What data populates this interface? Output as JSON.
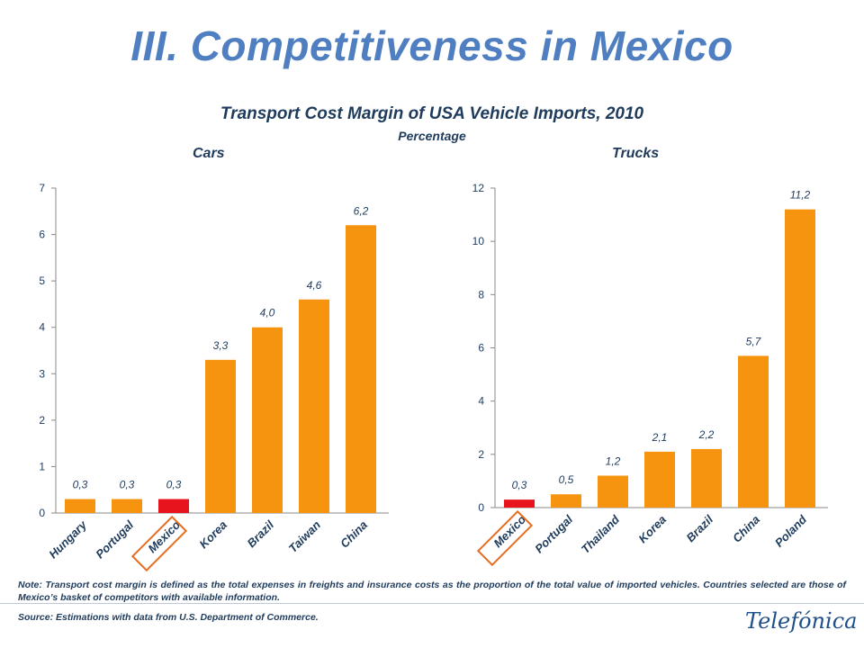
{
  "page": {
    "title": "III. Competitiveness in Mexico",
    "subtitle": "Transport Cost Margin of USA Vehicle Imports, 2010",
    "unit": "Percentage",
    "note": "Note: Transport cost margin is defined as the total expenses in freights and insurance costs as the proportion of the total value of imported vehicles. Countries selected are those of Mexico’s basket of competitors with available information.",
    "source": "Source: Estimations with data from U.S. Department of Commerce.",
    "logo_text": "Telefónica"
  },
  "colors": {
    "bar": "#f7940f",
    "highlight_bar": "#e8141d",
    "highlight_box": "#e56e20",
    "axis": "#888888"
  },
  "chart_data": [
    {
      "type": "bar",
      "title": "Cars",
      "categories": [
        "Hungary",
        "Portugal",
        "Mexico",
        "Korea",
        "Brazil",
        "Taiwan",
        "China"
      ],
      "values": [
        0.3,
        0.3,
        0.3,
        3.3,
        4.0,
        4.6,
        6.2
      ],
      "value_labels": [
        "0,3",
        "0,3",
        "0,3",
        "3,3",
        "4,0",
        "4,6",
        "6,2"
      ],
      "highlight": "Mexico",
      "ylim": [
        0,
        7
      ],
      "yticks": [
        "0",
        "1",
        "2",
        "3",
        "4",
        "5",
        "6",
        "7"
      ],
      "grid": false
    },
    {
      "type": "bar",
      "title": "Trucks",
      "categories": [
        "Mexico",
        "Portugal",
        "Thailand",
        "Korea",
        "Brazil",
        "China",
        "Poland"
      ],
      "values": [
        0.3,
        0.5,
        1.2,
        2.1,
        2.2,
        5.7,
        11.2
      ],
      "value_labels": [
        "0,3",
        "0,5",
        "1,2",
        "2,1",
        "2,2",
        "5,7",
        "11,2"
      ],
      "highlight": "Mexico",
      "ylim": [
        0,
        12
      ],
      "yticks": [
        "0",
        "2",
        "4",
        "6",
        "8",
        "10",
        "12"
      ],
      "grid": false
    }
  ]
}
